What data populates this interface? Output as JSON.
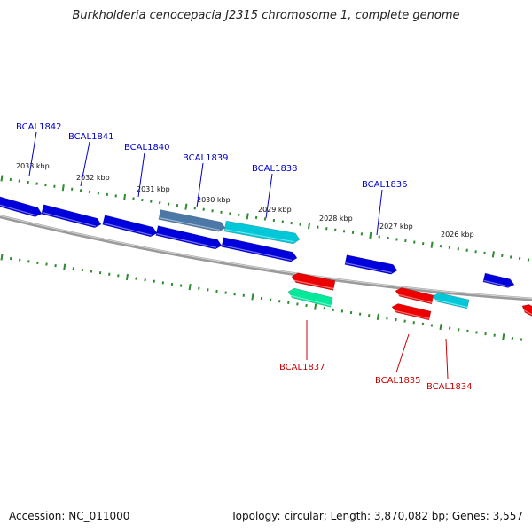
{
  "title": "Burkholderia cenocepacia J2315 chromosome 1, complete genome",
  "footer": {
    "accession": "Accession: NC_011000",
    "summary": "Topology: circular; Length: 3,870,082 bp; Genes: 3,557"
  },
  "colors": {
    "background": "#ffffff",
    "backbone": "#808080",
    "tick": "#2e8b2e",
    "gene_blue": "#0000dd",
    "gene_red": "#ee0000",
    "gene_cyan": "#00c8d8",
    "gene_green": "#00e89a",
    "gene_selected": "#4c78a8",
    "label_forward": "#0000cc",
    "label_reverse": "#cc0000"
  },
  "scale_labels": [
    "2033 kbp",
    "2032 kbp",
    "2031 kbp",
    "2030 kbp",
    "2029 kbp",
    "2028 kbp",
    "2027 kbp",
    "2026 kbp"
  ],
  "genes": [
    {
      "strand": "forward",
      "color": "gene_blue"
    },
    {
      "strand": "forward",
      "color": "gene_blue"
    },
    {
      "strand": "forward",
      "color": "gene_blue"
    },
    {
      "strand": "forward",
      "color": "gene_selected"
    },
    {
      "strand": "forward",
      "color": "gene_cyan"
    },
    {
      "strand": "forward",
      "color": "gene_blue"
    },
    {
      "strand": "forward",
      "color": "gene_blue"
    },
    {
      "strand": "forward",
      "color": "gene_blue"
    },
    {
      "strand": "forward",
      "color": "gene_blue"
    },
    {
      "strand": "reverse",
      "color": "gene_red"
    },
    {
      "strand": "reverse",
      "color": "gene_green"
    },
    {
      "strand": "reverse",
      "color": "gene_red"
    },
    {
      "strand": "reverse",
      "color": "gene_cyan"
    },
    {
      "strand": "reverse",
      "color": "gene_red"
    },
    {
      "strand": "reverse",
      "color": "gene_red"
    }
  ],
  "gene_labels": [
    {
      "text": "BCAL1842",
      "strand": "forward"
    },
    {
      "text": "BCAL1841",
      "strand": "forward"
    },
    {
      "text": "BCAL1840",
      "strand": "forward"
    },
    {
      "text": "BCAL1839",
      "strand": "forward"
    },
    {
      "text": "BCAL1838",
      "strand": "forward"
    },
    {
      "text": "BCAL1836",
      "strand": "forward"
    },
    {
      "text": "BCAL1837",
      "strand": "reverse"
    },
    {
      "text": "BCAL1835",
      "strand": "reverse"
    },
    {
      "text": "BCAL1834",
      "strand": "reverse"
    }
  ]
}
